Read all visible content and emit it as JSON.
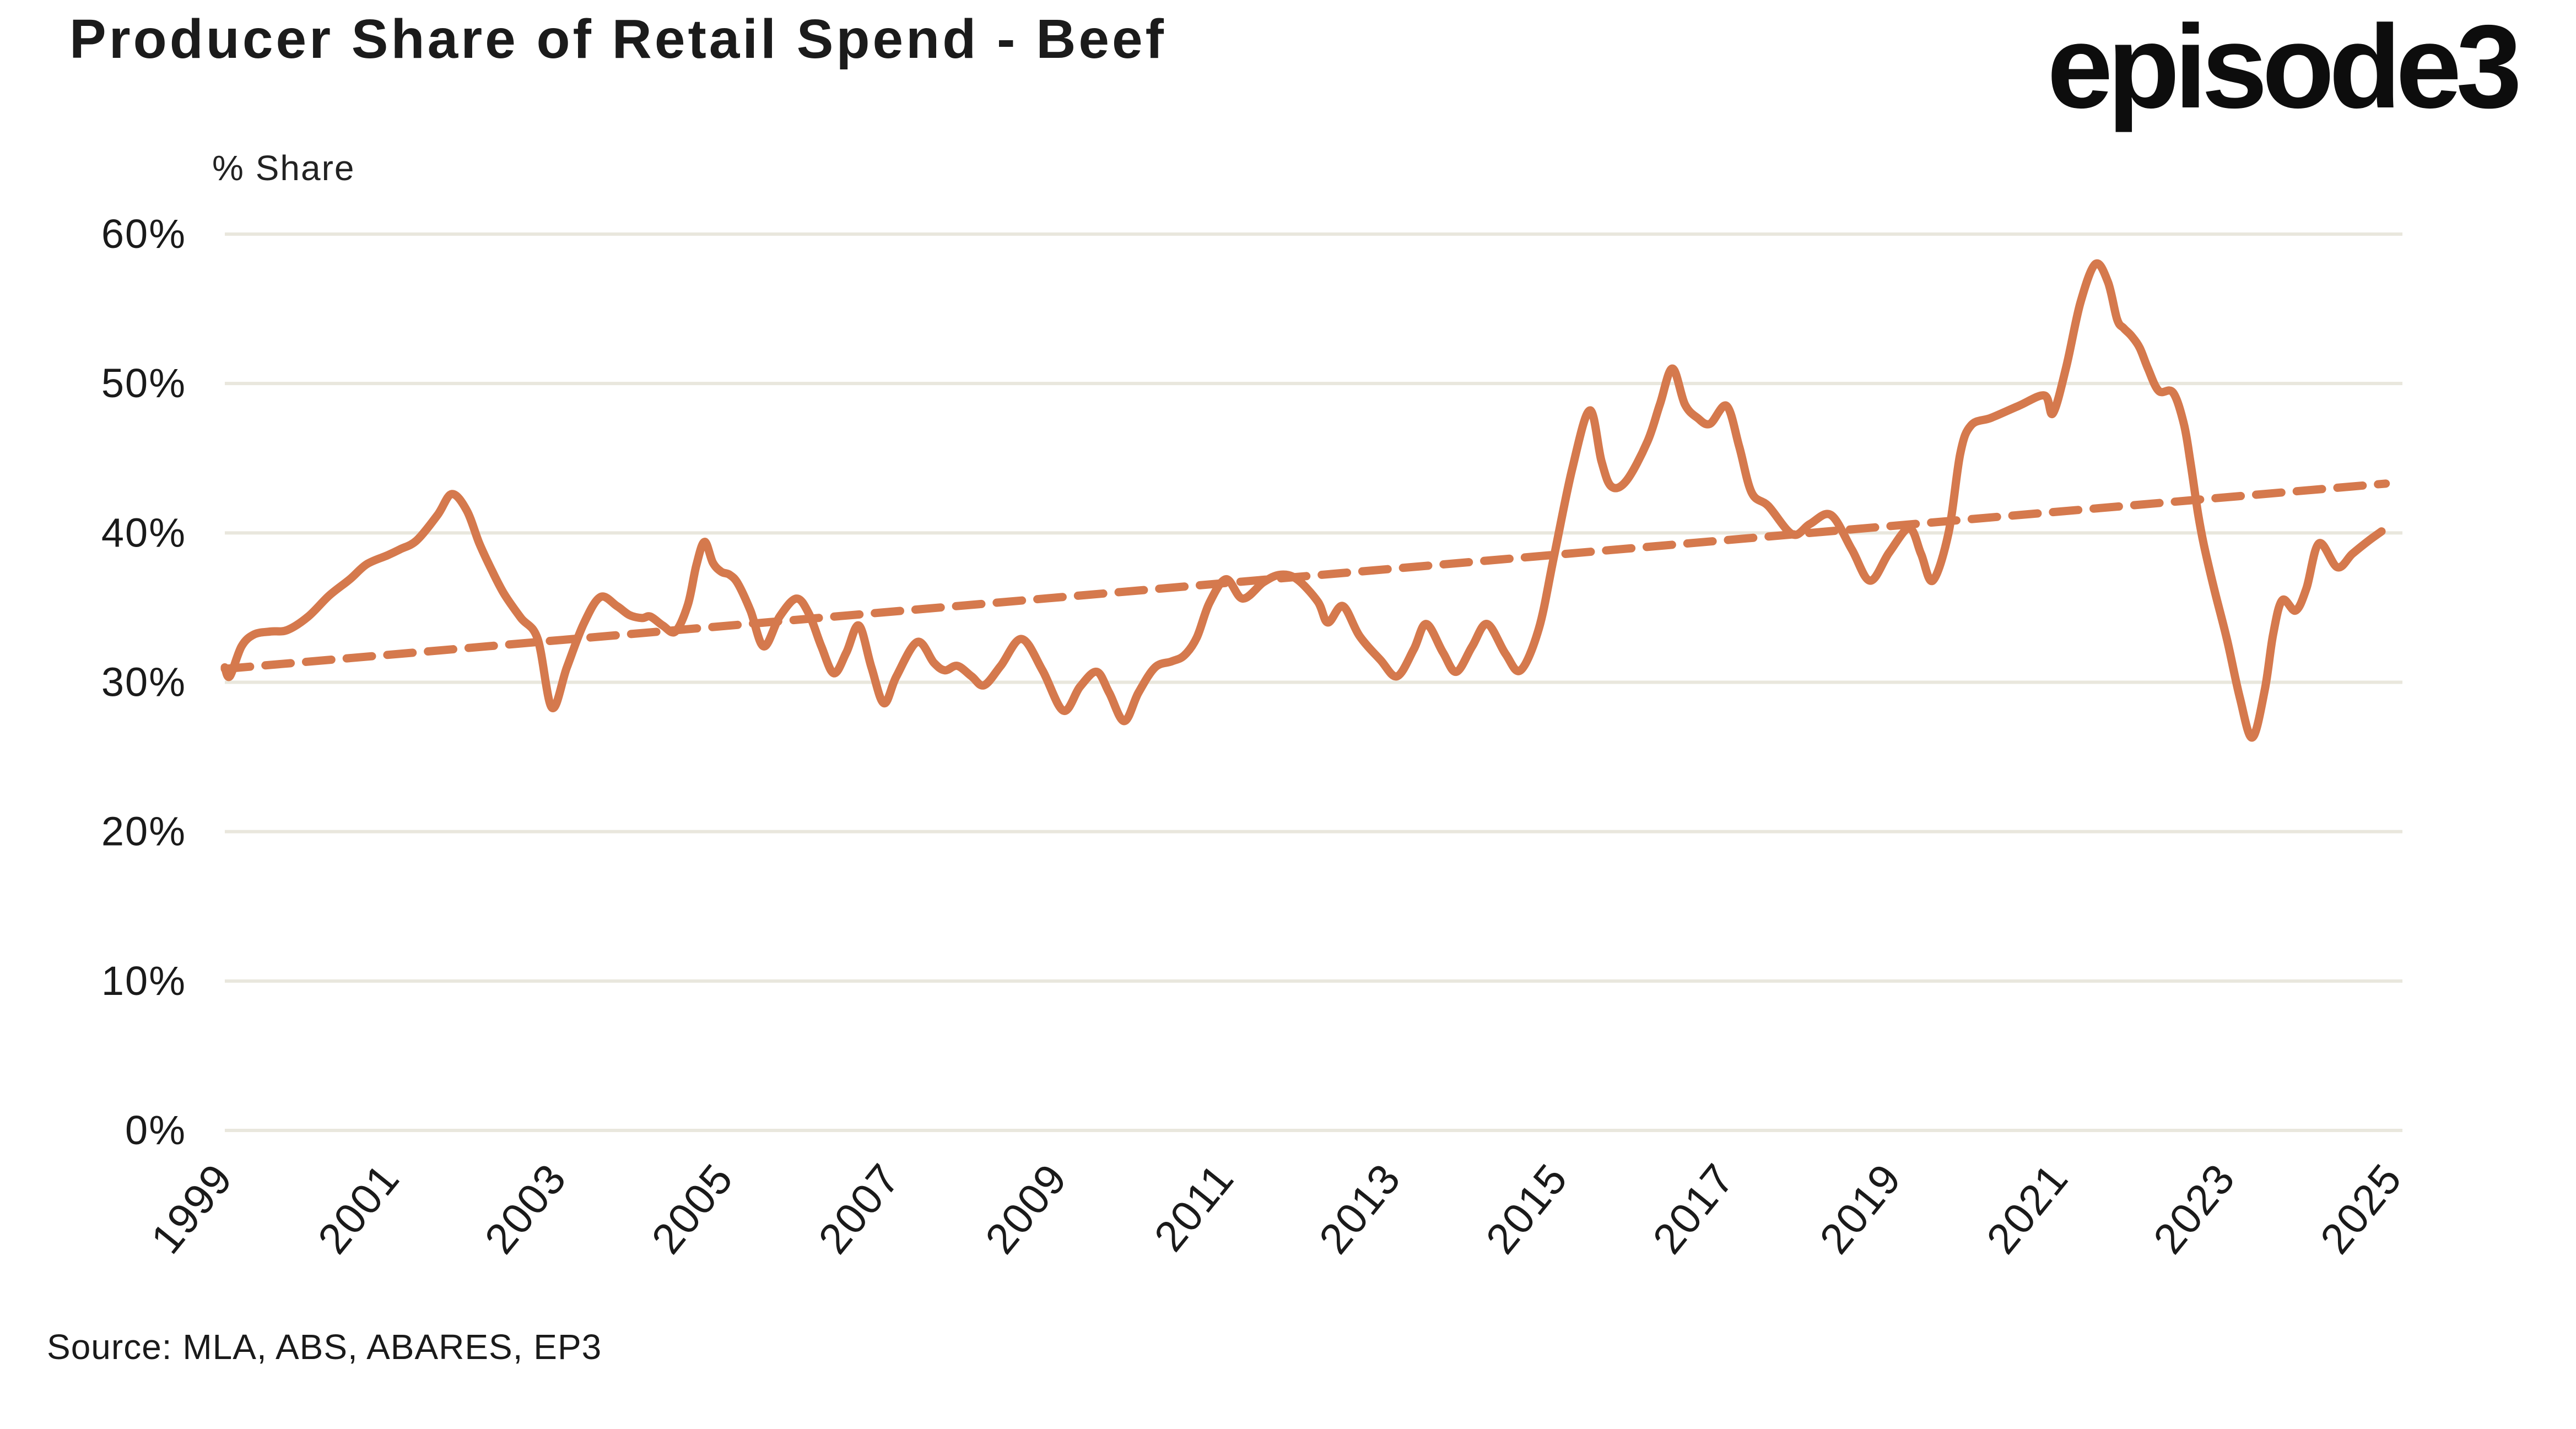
{
  "header": {
    "title": "Producer Share of Retail Spend - Beef",
    "logo_text": "episode3"
  },
  "axis_unit_label": "% Share",
  "source_note": "Source: MLA, ABS, ABARES, EP3",
  "chart_data": {
    "type": "line",
    "title": "Producer Share of Retail Spend - Beef",
    "ylabel": "% Share",
    "xlabel": "",
    "ylim": [
      0,
      60
    ],
    "yticks": [
      0,
      10,
      20,
      30,
      40,
      50,
      60
    ],
    "ytick_suffix": "%",
    "xlim": [
      1999,
      2025.1
    ],
    "x_tick_years": [
      1999,
      2001,
      2003,
      2005,
      2007,
      2009,
      2011,
      2013,
      2015,
      2017,
      2019,
      2021,
      2023,
      2025
    ],
    "grid": "horizontal",
    "legend_position": "none",
    "colors": {
      "series": "#D5794D",
      "trend": "#D5794D",
      "gridline": "#E9E7DD",
      "text": "#1A1A1A",
      "background": "#FFFFFF"
    },
    "series": [
      {
        "name": "Producer share of retail spend - beef",
        "style": "solid",
        "points": [
          [
            1999.0,
            31.0
          ],
          [
            1999.06,
            30.4
          ],
          [
            1999.2,
            32.4
          ],
          [
            1999.35,
            33.2
          ],
          [
            1999.55,
            33.4
          ],
          [
            1999.75,
            33.5
          ],
          [
            2000.0,
            34.4
          ],
          [
            2000.25,
            35.8
          ],
          [
            2000.5,
            36.9
          ],
          [
            2000.7,
            37.9
          ],
          [
            2000.95,
            38.5
          ],
          [
            2001.1,
            38.9
          ],
          [
            2001.3,
            39.5
          ],
          [
            2001.55,
            41.2
          ],
          [
            2001.72,
            42.6
          ],
          [
            2001.9,
            41.5
          ],
          [
            2002.05,
            39.3
          ],
          [
            2002.2,
            37.5
          ],
          [
            2002.35,
            35.9
          ],
          [
            2002.55,
            34.3
          ],
          [
            2002.75,
            32.9
          ],
          [
            2002.92,
            28.3
          ],
          [
            2003.1,
            31.0
          ],
          [
            2003.3,
            33.9
          ],
          [
            2003.5,
            35.7
          ],
          [
            2003.7,
            35.1
          ],
          [
            2003.85,
            34.5
          ],
          [
            2004.0,
            34.3
          ],
          [
            2004.1,
            34.4
          ],
          [
            2004.25,
            33.8
          ],
          [
            2004.4,
            33.4
          ],
          [
            2004.55,
            35.2
          ],
          [
            2004.65,
            37.8
          ],
          [
            2004.75,
            39.4
          ],
          [
            2004.85,
            38.0
          ],
          [
            2004.95,
            37.4
          ],
          [
            2005.05,
            37.2
          ],
          [
            2005.15,
            36.6
          ],
          [
            2005.3,
            34.8
          ],
          [
            2005.46,
            32.4
          ],
          [
            2005.65,
            34.4
          ],
          [
            2005.85,
            35.6
          ],
          [
            2006.0,
            34.6
          ],
          [
            2006.15,
            32.4
          ],
          [
            2006.3,
            30.6
          ],
          [
            2006.45,
            32.0
          ],
          [
            2006.6,
            33.8
          ],
          [
            2006.75,
            31.0
          ],
          [
            2006.9,
            28.6
          ],
          [
            2007.05,
            30.4
          ],
          [
            2007.3,
            32.7
          ],
          [
            2007.5,
            31.3
          ],
          [
            2007.63,
            30.8
          ],
          [
            2007.78,
            31.1
          ],
          [
            2007.95,
            30.4
          ],
          [
            2008.1,
            29.8
          ],
          [
            2008.3,
            31.1
          ],
          [
            2008.55,
            32.9
          ],
          [
            2008.8,
            30.8
          ],
          [
            2009.05,
            28.1
          ],
          [
            2009.25,
            29.7
          ],
          [
            2009.45,
            30.7
          ],
          [
            2009.6,
            29.3
          ],
          [
            2009.78,
            27.4
          ],
          [
            2009.95,
            29.3
          ],
          [
            2010.15,
            31.0
          ],
          [
            2010.35,
            31.4
          ],
          [
            2010.5,
            31.8
          ],
          [
            2010.65,
            33.0
          ],
          [
            2010.8,
            35.3
          ],
          [
            2011.0,
            36.9
          ],
          [
            2011.2,
            35.6
          ],
          [
            2011.45,
            36.7
          ],
          [
            2011.65,
            37.2
          ],
          [
            2011.85,
            36.9
          ],
          [
            2012.1,
            35.4
          ],
          [
            2012.22,
            34.0
          ],
          [
            2012.4,
            35.1
          ],
          [
            2012.6,
            33.1
          ],
          [
            2012.85,
            31.5
          ],
          [
            2013.05,
            30.4
          ],
          [
            2013.25,
            32.2
          ],
          [
            2013.4,
            33.9
          ],
          [
            2013.6,
            32.0
          ],
          [
            2013.76,
            30.7
          ],
          [
            2013.95,
            32.4
          ],
          [
            2014.13,
            33.9
          ],
          [
            2014.35,
            31.9
          ],
          [
            2014.53,
            30.8
          ],
          [
            2014.75,
            33.6
          ],
          [
            2014.93,
            38.4
          ],
          [
            2015.15,
            44.3
          ],
          [
            2015.36,
            48.2
          ],
          [
            2015.5,
            44.8
          ],
          [
            2015.62,
            43.1
          ],
          [
            2015.8,
            43.5
          ],
          [
            2016.05,
            46.1
          ],
          [
            2016.2,
            48.6
          ],
          [
            2016.35,
            51.0
          ],
          [
            2016.5,
            48.6
          ],
          [
            2016.65,
            47.7
          ],
          [
            2016.8,
            47.3
          ],
          [
            2017.0,
            48.5
          ],
          [
            2017.15,
            45.8
          ],
          [
            2017.3,
            42.7
          ],
          [
            2017.5,
            41.8
          ],
          [
            2017.79,
            39.9
          ],
          [
            2018.0,
            40.6
          ],
          [
            2018.25,
            41.2
          ],
          [
            2018.5,
            38.9
          ],
          [
            2018.72,
            36.8
          ],
          [
            2018.95,
            38.7
          ],
          [
            2019.19,
            40.3
          ],
          [
            2019.33,
            38.6
          ],
          [
            2019.47,
            36.8
          ],
          [
            2019.66,
            40.0
          ],
          [
            2019.8,
            45.3
          ],
          [
            2019.93,
            47.2
          ],
          [
            2020.17,
            47.7
          ],
          [
            2020.5,
            48.5
          ],
          [
            2020.81,
            49.2
          ],
          [
            2020.91,
            48.0
          ],
          [
            2021.07,
            51.1
          ],
          [
            2021.24,
            55.4
          ],
          [
            2021.42,
            58.0
          ],
          [
            2021.57,
            56.8
          ],
          [
            2021.68,
            54.3
          ],
          [
            2021.76,
            53.7
          ],
          [
            2021.85,
            53.2
          ],
          [
            2021.95,
            52.4
          ],
          [
            2022.05,
            51.0
          ],
          [
            2022.18,
            49.5
          ],
          [
            2022.35,
            49.4
          ],
          [
            2022.48,
            47.3
          ],
          [
            2022.56,
            44.7
          ],
          [
            2022.65,
            41.3
          ],
          [
            2022.72,
            39.2
          ],
          [
            2022.85,
            36.1
          ],
          [
            2023.0,
            32.8
          ],
          [
            2023.15,
            29.0
          ],
          [
            2023.3,
            26.3
          ],
          [
            2023.45,
            29.5
          ],
          [
            2023.55,
            33.2
          ],
          [
            2023.66,
            35.5
          ],
          [
            2023.82,
            34.8
          ],
          [
            2023.95,
            36.3
          ],
          [
            2024.1,
            39.3
          ],
          [
            2024.32,
            37.7
          ],
          [
            2024.5,
            38.6
          ],
          [
            2024.7,
            39.5
          ],
          [
            2024.85,
            40.1
          ]
        ]
      },
      {
        "name": "Linear trend",
        "style": "dashed",
        "points": [
          [
            1999.0,
            30.9
          ],
          [
            2024.9,
            43.3
          ]
        ]
      }
    ]
  }
}
